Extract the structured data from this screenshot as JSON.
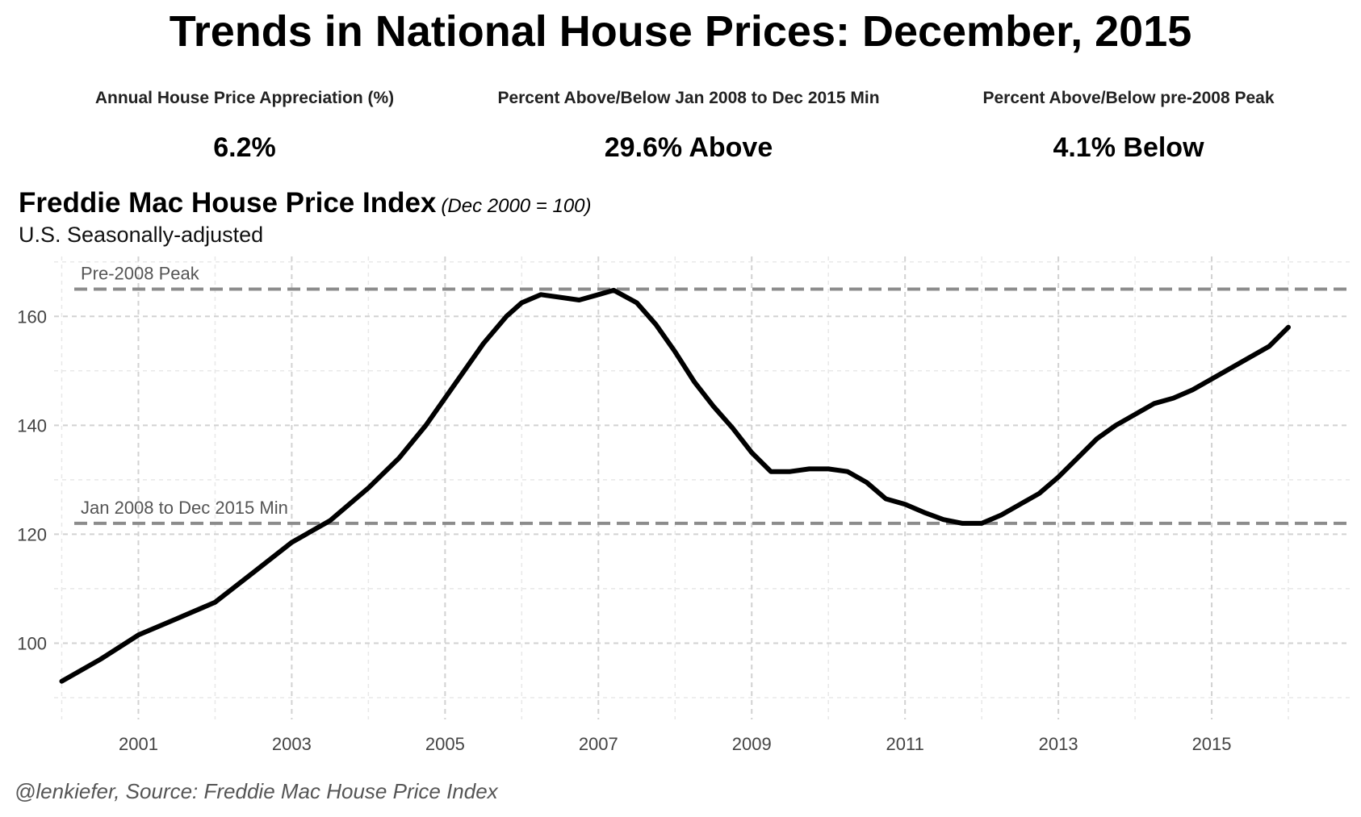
{
  "header": {
    "title": "Trends in National House Prices: December, 2015"
  },
  "stats": [
    {
      "label": "Annual House Price Appreciation (%)",
      "value": "6.2%"
    },
    {
      "label": "Percent Above/Below Jan 2008 to Dec 2015 Min",
      "value": "29.6% Above"
    },
    {
      "label": "Percent Above/Below pre-2008 Peak",
      "value": "4.1% Below"
    }
  ],
  "caption": "@lenkiefer, Source: Freddie Mac House Price Index",
  "chart_data": {
    "type": "line",
    "title": "Freddie Mac House Price Index",
    "title_note": "(Dec 2000 = 100)",
    "subtitle": "U.S. Seasonally-adjusted",
    "xlabel": "",
    "ylabel": "",
    "xlim": [
      1999.9,
      2016.8
    ],
    "ylim": [
      86,
      171
    ],
    "x_ticks": [
      2001,
      2003,
      2005,
      2007,
      2009,
      2011,
      2013,
      2015
    ],
    "y_ticks": [
      100,
      120,
      140,
      160
    ],
    "grid": true,
    "line_color": "#000000",
    "reference_lines": [
      {
        "label": "Pre-2008 Peak",
        "y": 165
      },
      {
        "label": "Jan 2008 to Dec 2015 Min",
        "y": 122
      }
    ],
    "series": [
      {
        "x": [
          2000.0,
          2000.5,
          2001.0,
          2001.5,
          2002.0,
          2002.5,
          2003.0,
          2003.5,
          2004.0,
          2004.4,
          2004.75,
          2005.0,
          2005.5,
          2005.8,
          2006.0,
          2006.25,
          2006.5,
          2006.75,
          2007.0,
          2007.2,
          2007.5,
          2007.75,
          2008.0,
          2008.25,
          2008.5,
          2008.75,
          2009.0,
          2009.25,
          2009.5,
          2009.75,
          2010.0,
          2010.25,
          2010.5,
          2010.75,
          2011.0,
          2011.25,
          2011.5,
          2011.75,
          2012.0,
          2012.25,
          2012.5,
          2012.75,
          2013.0,
          2013.25,
          2013.5,
          2013.75,
          2014.0,
          2014.25,
          2014.5,
          2014.75,
          2015.0,
          2015.25,
          2015.5,
          2015.75,
          2016.0
        ],
        "values": [
          93.0,
          97.0,
          101.5,
          104.5,
          107.5,
          113.0,
          118.5,
          122.5,
          128.5,
          134.0,
          140.0,
          145.0,
          155.0,
          160.0,
          162.5,
          164.0,
          163.5,
          163.0,
          164.0,
          164.8,
          162.5,
          158.5,
          153.5,
          148.0,
          143.5,
          139.5,
          135.0,
          131.5,
          131.5,
          132.0,
          132.0,
          131.5,
          129.5,
          126.5,
          125.5,
          124.0,
          122.7,
          122.0,
          122.0,
          123.5,
          125.5,
          127.5,
          130.5,
          134.0,
          137.5,
          140.0,
          142.0,
          144.0,
          145.0,
          146.5,
          148.5,
          150.5,
          152.5,
          154.5,
          158.0
        ]
      }
    ]
  }
}
